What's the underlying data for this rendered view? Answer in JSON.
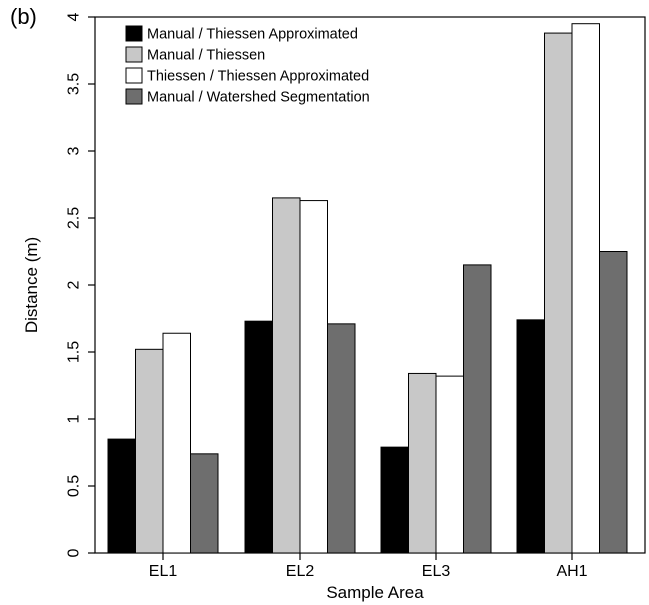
{
  "panel_label": "(b)",
  "chart_data": {
    "type": "bar",
    "categories": [
      "EL1",
      "EL2",
      "EL3",
      "AH1"
    ],
    "series": [
      {
        "name": "Manual / Thiessen Approximated",
        "values": [
          0.85,
          1.73,
          0.79,
          1.74
        ],
        "color": "#000000"
      },
      {
        "name": "Manual / Thiessen",
        "values": [
          1.52,
          2.65,
          1.34,
          3.88
        ],
        "color": "#c8c8c8"
      },
      {
        "name": "Thiessen / Thiessen Approximated",
        "values": [
          1.64,
          2.63,
          1.32,
          3.95
        ],
        "color": "#ffffff"
      },
      {
        "name": "Manual / Watershed Segmentation",
        "values": [
          0.74,
          1.71,
          2.15,
          2.25
        ],
        "color": "#6e6e6e"
      }
    ],
    "xlabel": "Sample Area",
    "ylabel": "Distance (m)",
    "ylim": [
      0,
      4
    ],
    "yticks": [
      "0",
      "0.5",
      "1",
      "1.5",
      "2",
      "2.5",
      "3",
      "3.5",
      "4"
    ],
    "grid": false,
    "legend_position": "top-left"
  }
}
